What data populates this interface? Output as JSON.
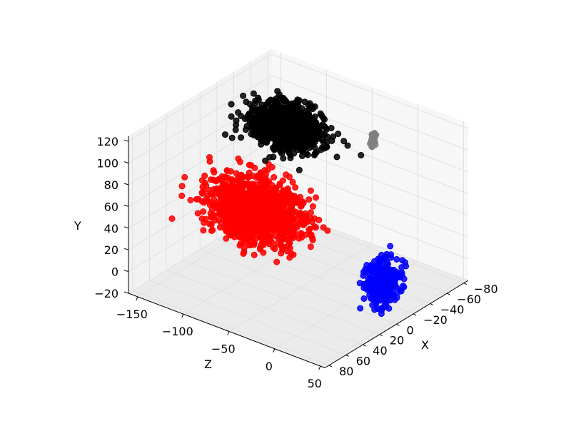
{
  "chart_data": {
    "type": "scatter",
    "projection": "3d",
    "xlabel": "X",
    "ylabel": "Y",
    "zlabel": "Z",
    "xlim": [
      -85,
      85
    ],
    "ylim": [
      -20,
      125
    ],
    "zlim": [
      -160,
      55
    ],
    "x_ticks": [
      "−80",
      "−60",
      "−40",
      "−20",
      "0",
      "20",
      "40",
      "60",
      "80"
    ],
    "x_tick_values": [
      -80,
      -60,
      -40,
      -20,
      0,
      20,
      40,
      60,
      80
    ],
    "y_ticks": [
      "−20",
      "0",
      "20",
      "40",
      "60",
      "80",
      "100",
      "120"
    ],
    "y_tick_values": [
      -20,
      0,
      20,
      40,
      60,
      80,
      100,
      120
    ],
    "z_ticks": [
      "−150",
      "−100",
      "−50",
      "0",
      "50"
    ],
    "z_tick_values": [
      -150,
      -100,
      -50,
      0,
      50
    ],
    "grid": true,
    "series": [
      {
        "color": "#ff0000",
        "center": [
          5,
          40,
          -95
        ],
        "spread": [
          12,
          12,
          22
        ],
        "count": 1400
      },
      {
        "color": "#000000",
        "center": [
          -30,
          100,
          -95
        ],
        "spread": [
          10,
          8,
          18
        ],
        "count": 900
      },
      {
        "color": "#0000ff",
        "center": [
          -5,
          10,
          35
        ],
        "spread": [
          8,
          10,
          6
        ],
        "count": 300
      },
      {
        "color": "#808080",
        "center": [
          -75,
          85,
          -40
        ],
        "spread": [
          1,
          3,
          1
        ],
        "count": 60
      }
    ]
  }
}
